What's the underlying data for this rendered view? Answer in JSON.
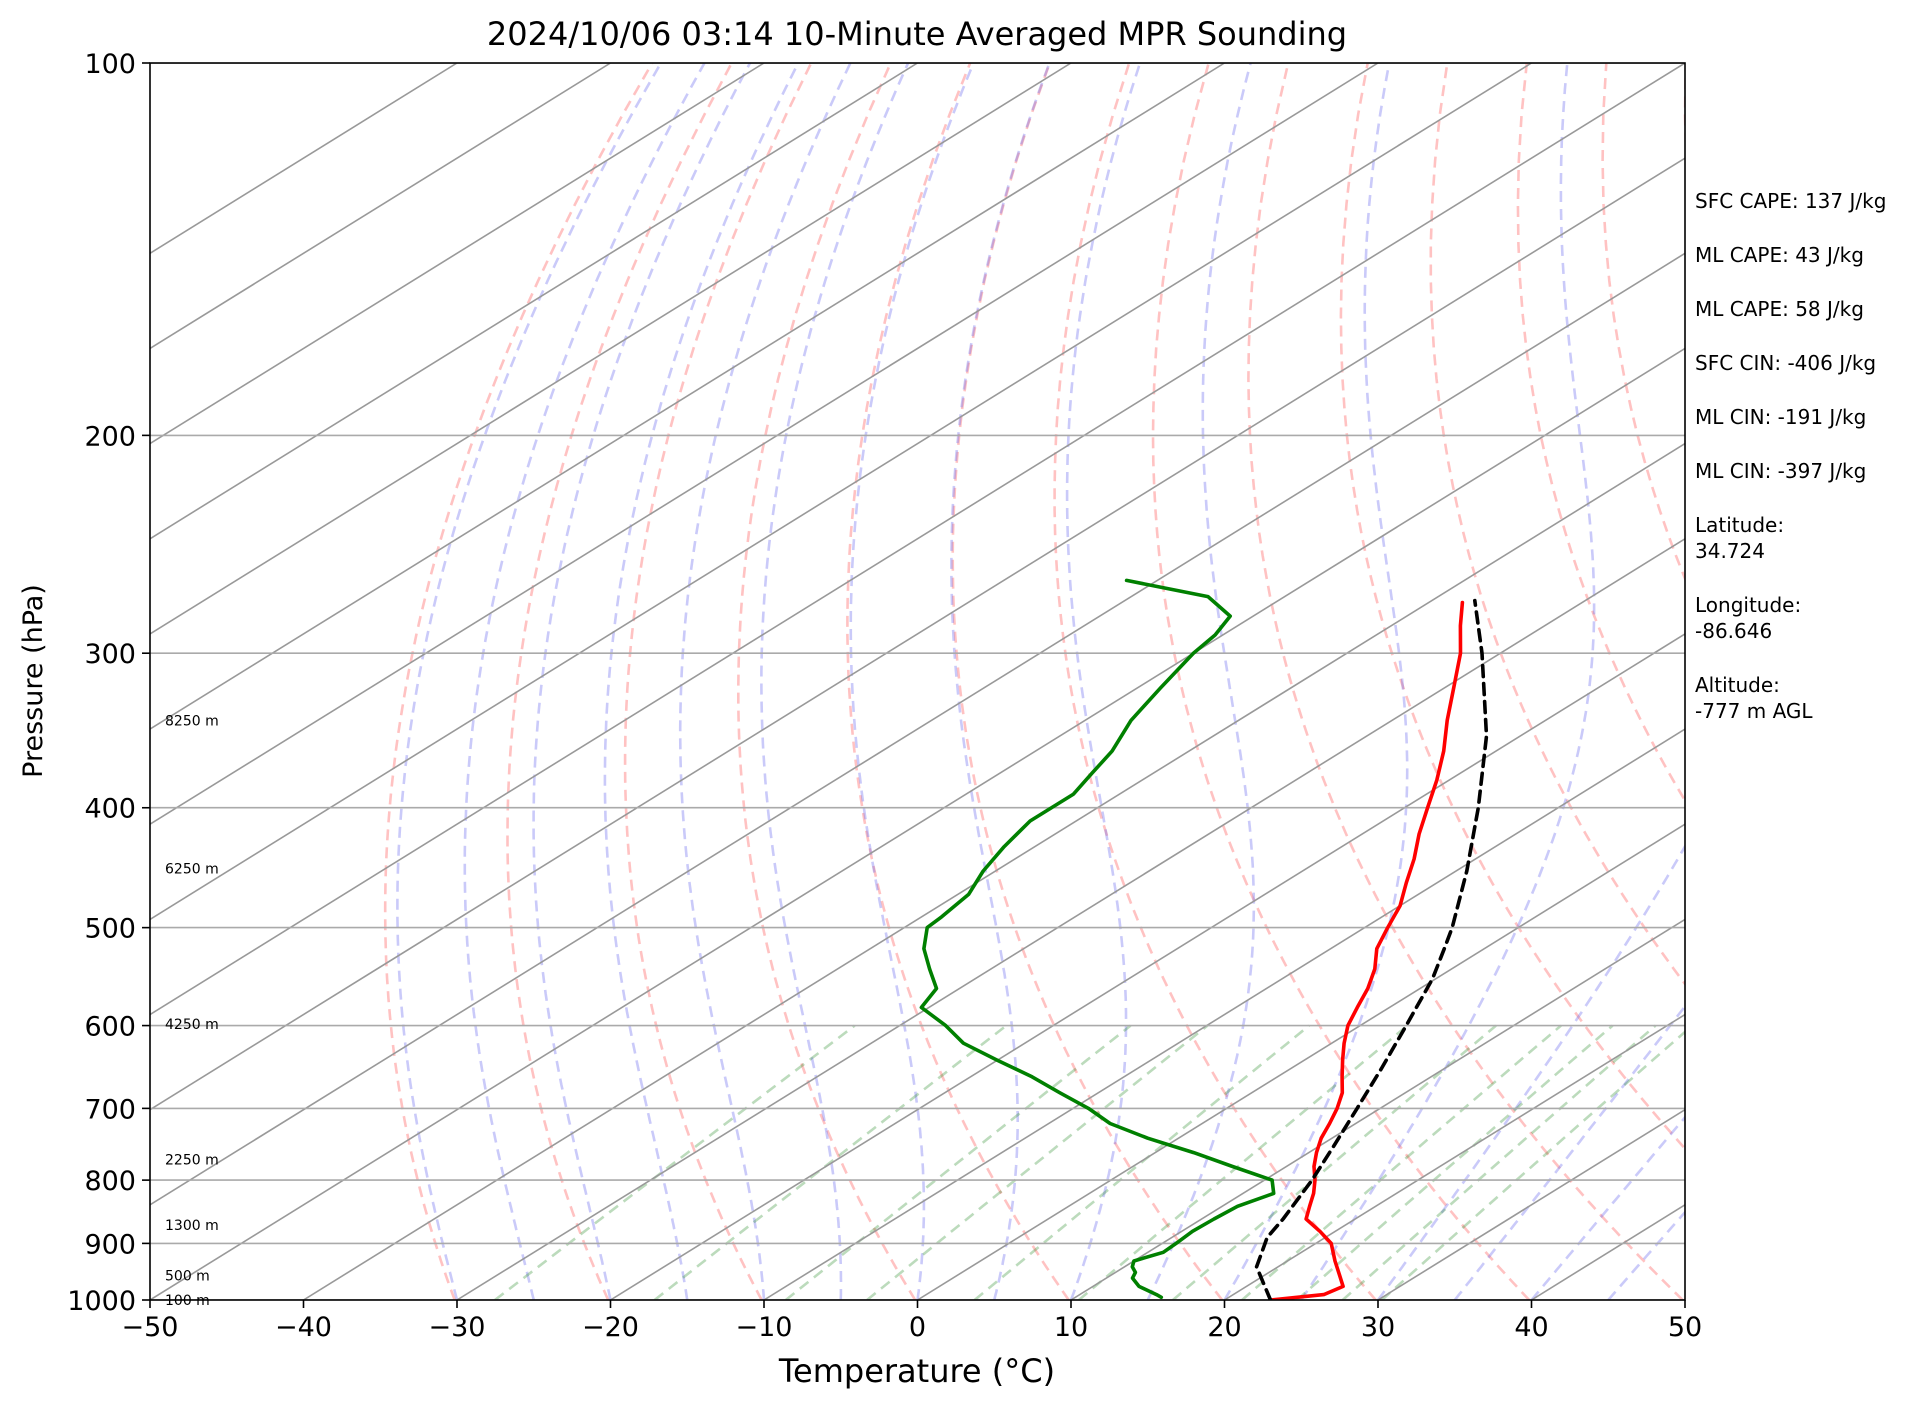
{
  "chart_data": {
    "type": "line",
    "title": "2024/10/06 03:14 10-Minute Averaged MPR Sounding",
    "xlabel": "Temperature (°C)",
    "ylabel": "Pressure (hPa)",
    "xlim": [
      -50,
      50
    ],
    "ylim": [
      1000,
      100
    ],
    "y_scale": "log",
    "x_ticks": [
      -50,
      -40,
      -30,
      -20,
      -10,
      0,
      10,
      20,
      30,
      40,
      50
    ],
    "x_tick_labels": [
      "−50",
      "−40",
      "−30",
      "−20",
      "−10",
      "0",
      "10",
      "20",
      "30",
      "40",
      "50"
    ],
    "y_ticks": [
      1000,
      900,
      800,
      700,
      600,
      500,
      400,
      300,
      200,
      100
    ],
    "y_tick_labels": [
      "1000",
      "900",
      "800",
      "700",
      "600",
      "500",
      "400",
      "300",
      "200",
      "100"
    ],
    "height_labels": [
      {
        "p": 1000,
        "text": "100 m"
      },
      {
        "p": 955,
        "text": "500 m"
      },
      {
        "p": 870,
        "text": "1300 m"
      },
      {
        "p": 770,
        "text": "2250 m"
      },
      {
        "p": 598,
        "text": "4250 m"
      },
      {
        "p": 448,
        "text": "6250 m"
      },
      {
        "p": 340,
        "text": "8250 m"
      }
    ],
    "stats": [
      {
        "text": "SFC CAPE: 137 J/kg"
      },
      {
        "text": "ML CAPE: 43 J/kg"
      },
      {
        "text": "ML CAPE: 58 J/kg"
      },
      {
        "text": "SFC CIN: -406 J/kg"
      },
      {
        "text": "ML CIN: -191 J/kg"
      },
      {
        "text": "ML CIN: -397 J/kg"
      },
      {
        "text": "Latitude:\n34.724"
      },
      {
        "text": "Longitude:\n-86.646"
      },
      {
        "text": "Altitude:\n-777 m AGL"
      }
    ],
    "series": [
      {
        "id": "temperature",
        "color": "#ff0000",
        "style": "solid",
        "points": [
          [
            1000,
            23.0
          ],
          [
            990,
            25.9
          ],
          [
            975,
            26.3
          ],
          [
            955,
            24.9
          ],
          [
            930,
            23.1
          ],
          [
            900,
            21.0
          ],
          [
            880,
            19.0
          ],
          [
            860,
            16.8
          ],
          [
            840,
            15.7
          ],
          [
            820,
            14.6
          ],
          [
            800,
            13.3
          ],
          [
            780,
            11.8
          ],
          [
            760,
            10.5
          ],
          [
            740,
            9.3
          ],
          [
            720,
            8.3
          ],
          [
            700,
            7.2
          ],
          [
            680,
            5.9
          ],
          [
            660,
            4.2
          ],
          [
            640,
            2.5
          ],
          [
            620,
            0.8
          ],
          [
            600,
            -0.8
          ],
          [
            580,
            -2.1
          ],
          [
            560,
            -3.4
          ],
          [
            540,
            -5.0
          ],
          [
            520,
            -7.0
          ],
          [
            500,
            -8.5
          ],
          [
            480,
            -10.0
          ],
          [
            460,
            -12.0
          ],
          [
            440,
            -14.0
          ],
          [
            420,
            -16.3
          ],
          [
            400,
            -18.5
          ],
          [
            380,
            -20.8
          ],
          [
            360,
            -23.4
          ],
          [
            340,
            -26.4
          ],
          [
            320,
            -29.4
          ],
          [
            300,
            -32.6
          ],
          [
            285,
            -35.5
          ],
          [
            273,
            -37.8
          ]
        ]
      },
      {
        "id": "parcel",
        "color": "#000000",
        "style": "dashed",
        "points": [
          [
            1000,
            23.0
          ],
          [
            940,
            18.6
          ],
          [
            890,
            16.2
          ],
          [
            860,
            15.3
          ],
          [
            800,
            13.1
          ],
          [
            750,
            10.9
          ],
          [
            700,
            8.5
          ],
          [
            650,
            5.9
          ],
          [
            600,
            3.0
          ],
          [
            550,
            -0.2
          ],
          [
            520,
            -2.6
          ],
          [
            500,
            -4.3
          ],
          [
            450,
            -9.3
          ],
          [
            400,
            -15.2
          ],
          [
            350,
            -22.2
          ],
          [
            300,
            -31.2
          ],
          [
            272,
            -37.2
          ]
        ]
      },
      {
        "id": "dewpoint",
        "color": "#008000",
        "style": "solid",
        "points": [
          [
            995,
            15.6
          ],
          [
            990,
            15.0
          ],
          [
            975,
            13.0
          ],
          [
            960,
            11.7
          ],
          [
            950,
            11.3
          ],
          [
            940,
            10.5
          ],
          [
            930,
            10.0
          ],
          [
            915,
            11.0
          ],
          [
            900,
            10.9
          ],
          [
            880,
            10.7
          ],
          [
            860,
            10.8
          ],
          [
            840,
            11.0
          ],
          [
            820,
            12.0
          ],
          [
            800,
            10.5
          ],
          [
            780,
            6.5
          ],
          [
            760,
            2.5
          ],
          [
            740,
            -2.0
          ],
          [
            720,
            -6.0
          ],
          [
            700,
            -9.0
          ],
          [
            680,
            -12.5
          ],
          [
            660,
            -16.0
          ],
          [
            640,
            -20.0
          ],
          [
            620,
            -24.0
          ],
          [
            600,
            -27.0
          ],
          [
            580,
            -30.5
          ],
          [
            560,
            -31.5
          ],
          [
            540,
            -34.0
          ],
          [
            520,
            -36.5
          ],
          [
            500,
            -38.5
          ],
          [
            490,
            -38.7
          ],
          [
            470,
            -39.3
          ],
          [
            450,
            -40.8
          ],
          [
            430,
            -42.0
          ],
          [
            410,
            -43.0
          ],
          [
            390,
            -43.0
          ],
          [
            375,
            -44.0
          ],
          [
            360,
            -45.0
          ],
          [
            340,
            -47.0
          ],
          [
            320,
            -48.5
          ],
          [
            300,
            -50.0
          ],
          [
            290,
            -50.5
          ],
          [
            280,
            -51.5
          ],
          [
            270,
            -55.0
          ],
          [
            262,
            -62.0
          ]
        ]
      }
    ]
  }
}
